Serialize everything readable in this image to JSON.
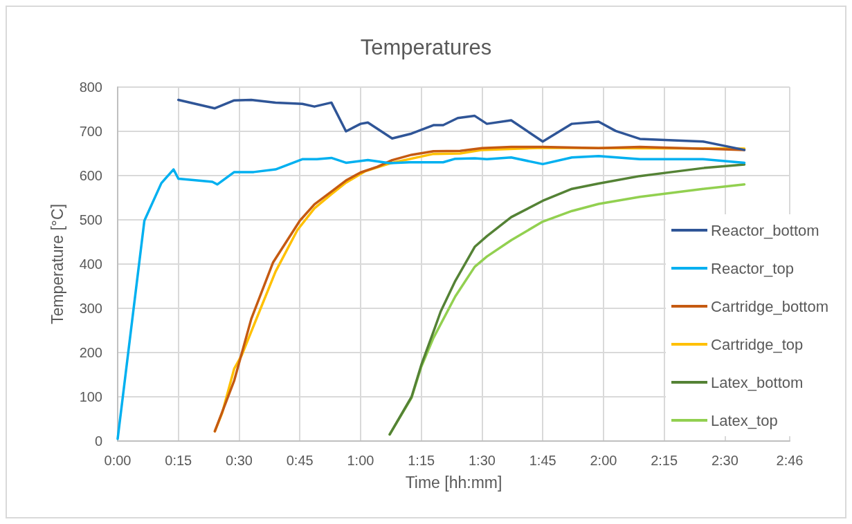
{
  "chart_data": {
    "type": "line",
    "title": "Temperatures",
    "xlabel": "Time [hh:mm]",
    "ylabel": "Temperature [°C]",
    "xlim": [
      0,
      2.7667
    ],
    "ylim": [
      0,
      800
    ],
    "xticks": [
      {
        "value": 0,
        "label": "0:00"
      },
      {
        "value": 0.25,
        "label": "0:15"
      },
      {
        "value": 0.5,
        "label": "0:30"
      },
      {
        "value": 0.75,
        "label": "0:45"
      },
      {
        "value": 1,
        "label": "1:00"
      },
      {
        "value": 1.25,
        "label": "1:15"
      },
      {
        "value": 1.5,
        "label": "1:30"
      },
      {
        "value": 1.75,
        "label": "1:45"
      },
      {
        "value": 2,
        "label": "2:00"
      },
      {
        "value": 2.25,
        "label": "2:15"
      },
      {
        "value": 2.5,
        "label": "2:30"
      },
      {
        "value": 2.7667,
        "label": "2:46"
      }
    ],
    "yticks": [
      0,
      100,
      200,
      300,
      400,
      500,
      600,
      700,
      800
    ],
    "grid": true,
    "legend": "right",
    "marker": "none",
    "line_style": "solid",
    "series": [
      {
        "name": "Reactor_bottom",
        "color": "#2f5597",
        "x": [
          0.25,
          0.4,
          0.48,
          0.55,
          0.65,
          0.76,
          0.81,
          0.88,
          0.94,
          1.0,
          1.03,
          1.13,
          1.21,
          1.3,
          1.34,
          1.4,
          1.47,
          1.52,
          1.62,
          1.75,
          1.87,
          1.98,
          2.05,
          2.15,
          2.27,
          2.41,
          2.58
        ],
        "values": [
          771,
          752,
          770,
          771,
          765,
          762,
          756,
          765,
          700,
          717,
          720,
          684,
          695,
          714,
          714,
          730,
          735,
          717,
          725,
          677,
          717,
          722,
          701,
          683,
          680,
          677,
          658
        ]
      },
      {
        "name": "Reactor_top",
        "color": "#00b0f0",
        "x": [
          0,
          0.11,
          0.18,
          0.23,
          0.25,
          0.39,
          0.41,
          0.48,
          0.56,
          0.65,
          0.76,
          0.82,
          0.88,
          0.94,
          1.03,
          1.12,
          1.2,
          1.34,
          1.39,
          1.47,
          1.52,
          1.62,
          1.75,
          1.87,
          1.98,
          2.15,
          2.41,
          2.58
        ],
        "values": [
          5,
          498,
          583,
          614,
          593,
          586,
          580,
          608,
          608,
          614,
          637,
          637,
          640,
          629,
          635,
          628,
          630,
          630,
          638,
          639,
          637,
          641,
          626,
          641,
          644,
          637,
          637,
          629
        ]
      },
      {
        "name": "Cartridge_bottom",
        "color": "#c55a11",
        "x": [
          0.4,
          0.48,
          0.55,
          0.64,
          0.75,
          0.81,
          0.88,
          0.94,
          1.0,
          1.07,
          1.13,
          1.21,
          1.3,
          1.41,
          1.5,
          1.62,
          1.75,
          1.98,
          2.15,
          2.58
        ],
        "values": [
          22,
          137,
          276,
          404,
          498,
          535,
          564,
          589,
          607,
          620,
          635,
          647,
          655,
          656,
          662,
          665,
          665,
          662,
          665,
          658
        ]
      },
      {
        "name": "Cartridge_top",
        "color": "#ffc000",
        "x": [
          0.4,
          0.43,
          0.48,
          0.51,
          0.65,
          0.74,
          0.81,
          0.88,
          0.94,
          1.02,
          1.13,
          1.3,
          1.41,
          1.5,
          1.75,
          1.98,
          2.58
        ],
        "values": [
          22,
          63,
          164,
          193,
          383,
          477,
          526,
          558,
          584,
          610,
          629,
          649,
          650,
          658,
          663,
          662,
          661
        ]
      },
      {
        "name": "Latex_bottom",
        "color": "#548235",
        "x": [
          1.12,
          1.21,
          1.25,
          1.3,
          1.33,
          1.39,
          1.47,
          1.52,
          1.62,
          1.75,
          1.87,
          1.98,
          2.15,
          2.41,
          2.58
        ],
        "values": [
          15,
          100,
          172,
          247,
          293,
          362,
          439,
          463,
          506,
          543,
          570,
          582,
          599,
          617,
          625
        ]
      },
      {
        "name": "Latex_top",
        "color": "#92d050",
        "x": [
          1.12,
          1.21,
          1.25,
          1.3,
          1.39,
          1.47,
          1.52,
          1.62,
          1.75,
          1.87,
          1.98,
          2.15,
          2.41,
          2.58
        ],
        "values": [
          15,
          98,
          168,
          233,
          327,
          394,
          417,
          454,
          496,
          520,
          536,
          552,
          570,
          580
        ]
      }
    ]
  }
}
